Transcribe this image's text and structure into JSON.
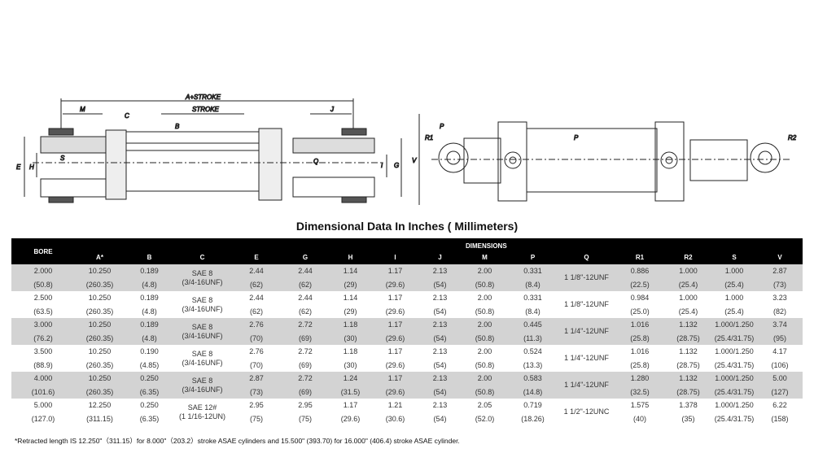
{
  "drawings": {
    "side_section_labels": {
      "a_stroke": "A+STROKE",
      "m": "M",
      "stroke": "STROKE",
      "j": "J",
      "b": "B",
      "c": "C",
      "e": "E",
      "h": "H",
      "s": "S",
      "q": "Q",
      "i": "I",
      "g": "G"
    },
    "end_view_labels": {
      "r1": "R1",
      "p1": "P",
      "v": "V",
      "p2": "P",
      "r2": "R2"
    }
  },
  "title": "Dimensional Data In Inches ( Millimeters)",
  "table": {
    "group_header": "DIMENSIONS",
    "columns": [
      "BORE",
      "A*",
      "B",
      "C",
      "E",
      "G",
      "H",
      "I",
      "J",
      "M",
      "P",
      "Q",
      "R1",
      "R2",
      "S",
      "V"
    ],
    "rows": [
      {
        "in": [
          "2.000",
          "10.250",
          "0.189",
          "SAE 8",
          "2.44",
          "2.44",
          "1.14",
          "1.17",
          "2.13",
          "2.00",
          "0.331",
          "1 1/8\"-12UNF",
          "0.886",
          "1.000",
          "1.000",
          "2.87"
        ],
        "mm": [
          "(50.8)",
          "(260.35)",
          "(4.8)",
          "(3/4-16UNF)",
          "(62)",
          "(62)",
          "(29)",
          "(29.6)",
          "(54)",
          "(50.8)",
          "(8.4)",
          "",
          "(22.5)",
          "(25.4)",
          "(25.4)",
          "(73)"
        ]
      },
      {
        "in": [
          "2.500",
          "10.250",
          "0.189",
          "SAE 8",
          "2.44",
          "2.44",
          "1.14",
          "1.17",
          "2.13",
          "2.00",
          "0.331",
          "1 1/8\"-12UNF",
          "0.984",
          "1.000",
          "1.000",
          "3.23"
        ],
        "mm": [
          "(63.5)",
          "(260.35)",
          "(4.8)",
          "(3/4-16UNF)",
          "(62)",
          "(62)",
          "(29)",
          "(29.6)",
          "(54)",
          "(50.8)",
          "(8.4)",
          "",
          "(25.0)",
          "(25.4)",
          "(25.4)",
          "(82)"
        ]
      },
      {
        "in": [
          "3.000",
          "10.250",
          "0.189",
          "SAE 8",
          "2.76",
          "2.72",
          "1.18",
          "1.17",
          "2.13",
          "2.00",
          "0.445",
          "1 1/4\"-12UNF",
          "1.016",
          "1.132",
          "1.000/1.250",
          "3.74"
        ],
        "mm": [
          "(76.2)",
          "(260.35)",
          "(4.8)",
          "(3/4-16UNF)",
          "(70)",
          "(69)",
          "(30)",
          "(29.6)",
          "(54)",
          "(50.8)",
          "(11.3)",
          "",
          "(25.8)",
          "(28.75)",
          "(25.4/31.75)",
          "(95)"
        ]
      },
      {
        "in": [
          "3.500",
          "10.250",
          "0.190",
          "SAE 8",
          "2.76",
          "2.72",
          "1.18",
          "1.17",
          "2.13",
          "2.00",
          "0.524",
          "1 1/4\"-12UNF",
          "1.016",
          "1.132",
          "1.000/1.250",
          "4.17"
        ],
        "mm": [
          "(88.9)",
          "(260.35)",
          "(4.85)",
          "(3/4-16UNF)",
          "(70)",
          "(69)",
          "(30)",
          "(29.6)",
          "(54)",
          "(50.8)",
          "(13.3)",
          "",
          "(25.8)",
          "(28.75)",
          "(25.4/31.75)",
          "(106)"
        ]
      },
      {
        "in": [
          "4.000",
          "10.250",
          "0.250",
          "SAE 8",
          "2.87",
          "2.72",
          "1.24",
          "1.17",
          "2.13",
          "2.00",
          "0.583",
          "1 1/4\"-12UNF",
          "1.280",
          "1.132",
          "1.000/1.250",
          "5.00"
        ],
        "mm": [
          "(101.6)",
          "(260.35)",
          "(6.35)",
          "(3/4-16UNF)",
          "(73)",
          "(69)",
          "(31.5)",
          "(29.6)",
          "(54)",
          "(50.8)",
          "(14.8)",
          "",
          "(32.5)",
          "(28.75)",
          "(25.4/31.75)",
          "(127)"
        ]
      },
      {
        "in": [
          "5.000",
          "12.250",
          "0.250",
          "SAE 12#",
          "2.95",
          "2.95",
          "1.17",
          "1.21",
          "2.13",
          "2.05",
          "0.719",
          "1 1/2\"-12UNC",
          "1.575",
          "1.378",
          "1.000/1.250",
          "6.22"
        ],
        "mm": [
          "(127.0)",
          "(311.15)",
          "(6.35)",
          "(1 1/16-12UN)",
          "(75)",
          "(75)",
          "(29.6)",
          "(30.6)",
          "(54)",
          "(52.0)",
          "(18.26)",
          "",
          "(40)",
          "(35)",
          "(25.4/31.75)",
          "(158)"
        ]
      }
    ]
  },
  "footnote": "*Retracted length IS 12.250\"（311.15）for  8.000\"（203.2）stroke ASAE cylinders and 15.500\" (393.70) for 16.000\" (406.4) stroke ASAE cylinder."
}
